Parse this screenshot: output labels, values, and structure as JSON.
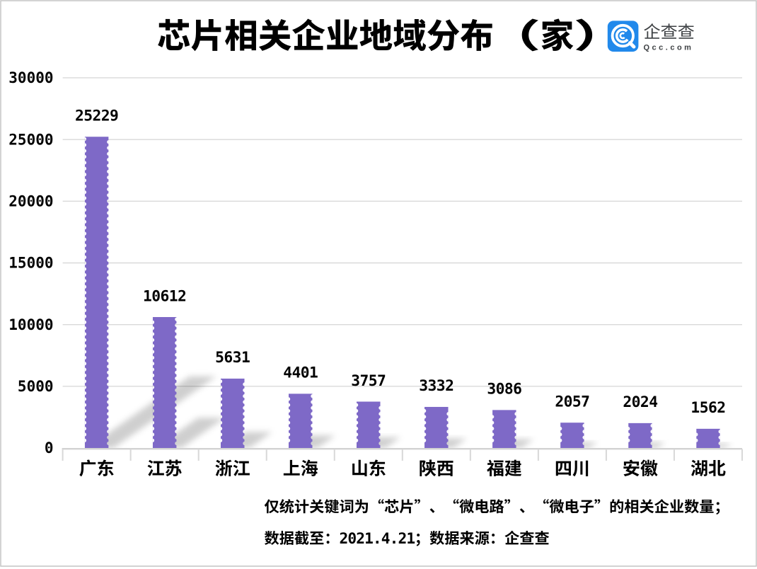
{
  "frame": {
    "background": "#ffffff",
    "border_color": "#c8c8c8"
  },
  "header": {
    "title": "芯片相关企业地域分布（家）"
  },
  "logo": {
    "name": "企查查",
    "domain": "Qcc.com",
    "icon": "qcc-magnifier-icon",
    "brand_color": "#2189eb",
    "text_color": "#3d4043"
  },
  "chart_data": {
    "type": "bar",
    "title": "芯片相关企业地域分布（家）",
    "categories": [
      "广东",
      "江苏",
      "浙江",
      "上海",
      "山东",
      "陕西",
      "福建",
      "四川",
      "安徽",
      "湖北"
    ],
    "values": [
      25229,
      10612,
      5631,
      4401,
      3757,
      3332,
      3086,
      2057,
      2024,
      1562
    ],
    "yticks": [
      30000,
      25000,
      20000,
      15000,
      10000,
      5000,
      0
    ],
    "ylim": [
      0,
      30000
    ],
    "grid": true,
    "legend_position": "none",
    "xlabel": "",
    "ylabel": "",
    "bar_color": "#7e69c7",
    "label_color": "#000000",
    "grid_color": "#d9d9d9"
  },
  "footer": {
    "line1": "仅统计关键词为“芯片”、“微电路”、“微电子”的相关企业数量；",
    "line2": "数据截至：2021.4.21；数据来源：企查查"
  }
}
